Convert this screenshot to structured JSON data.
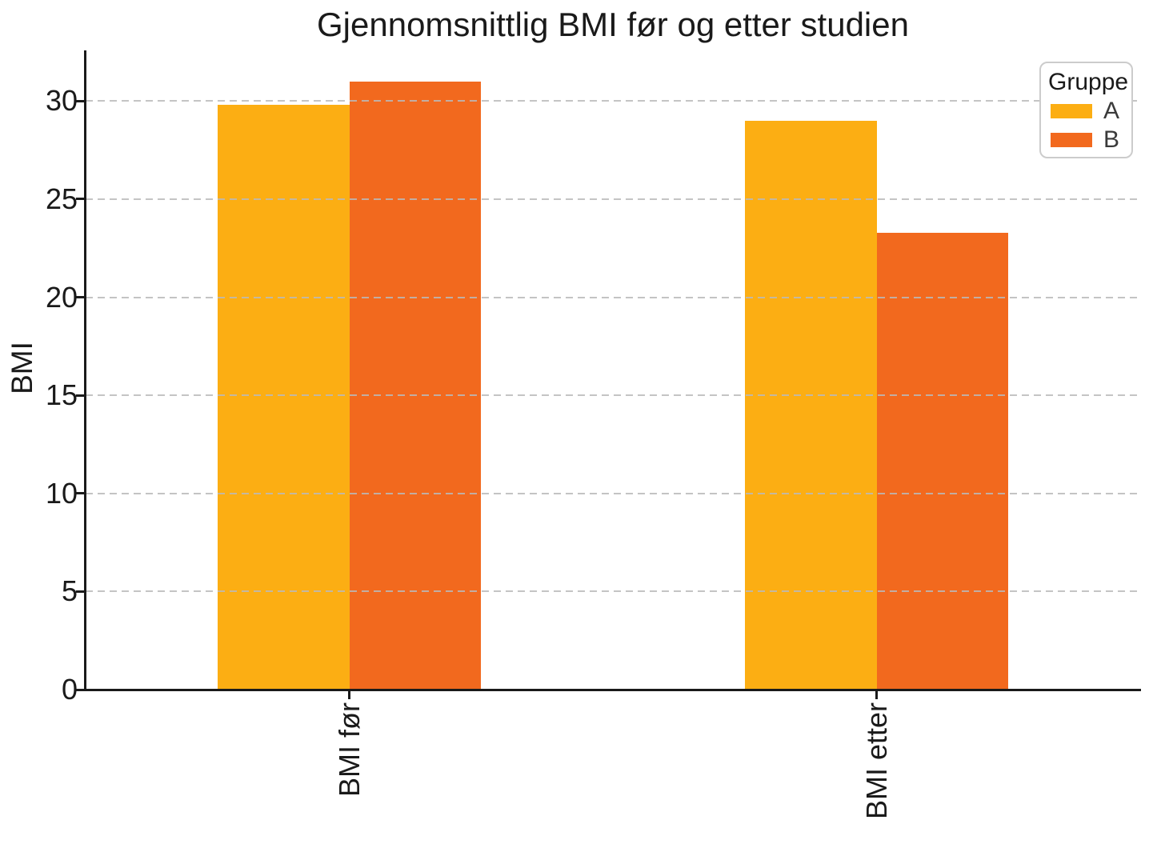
{
  "chart_data": {
    "type": "bar",
    "title": "Gjennomsnittlig BMI før og etter studien",
    "xlabel": "",
    "ylabel": "BMI",
    "categories": [
      "BMI før",
      "BMI etter"
    ],
    "series": [
      {
        "name": "A",
        "color": "#FCAE13",
        "values": [
          29.8,
          29.0
        ]
      },
      {
        "name": "B",
        "color": "#F2691E",
        "values": [
          31.0,
          23.3
        ]
      }
    ],
    "ylim": [
      0,
      32.5
    ],
    "yticks": [
      0,
      5,
      10,
      15,
      20,
      25,
      30
    ],
    "grid": "horizontal-dashed",
    "x_tick_rotation": 90,
    "legend": {
      "title": "Gruppe",
      "position": "upper right"
    }
  },
  "colors": {
    "background": "#ffffff",
    "axis": "#1a1a1a",
    "text": "#1a1a1a",
    "gridline": "#bababa",
    "legend_border": "#cccccc"
  }
}
